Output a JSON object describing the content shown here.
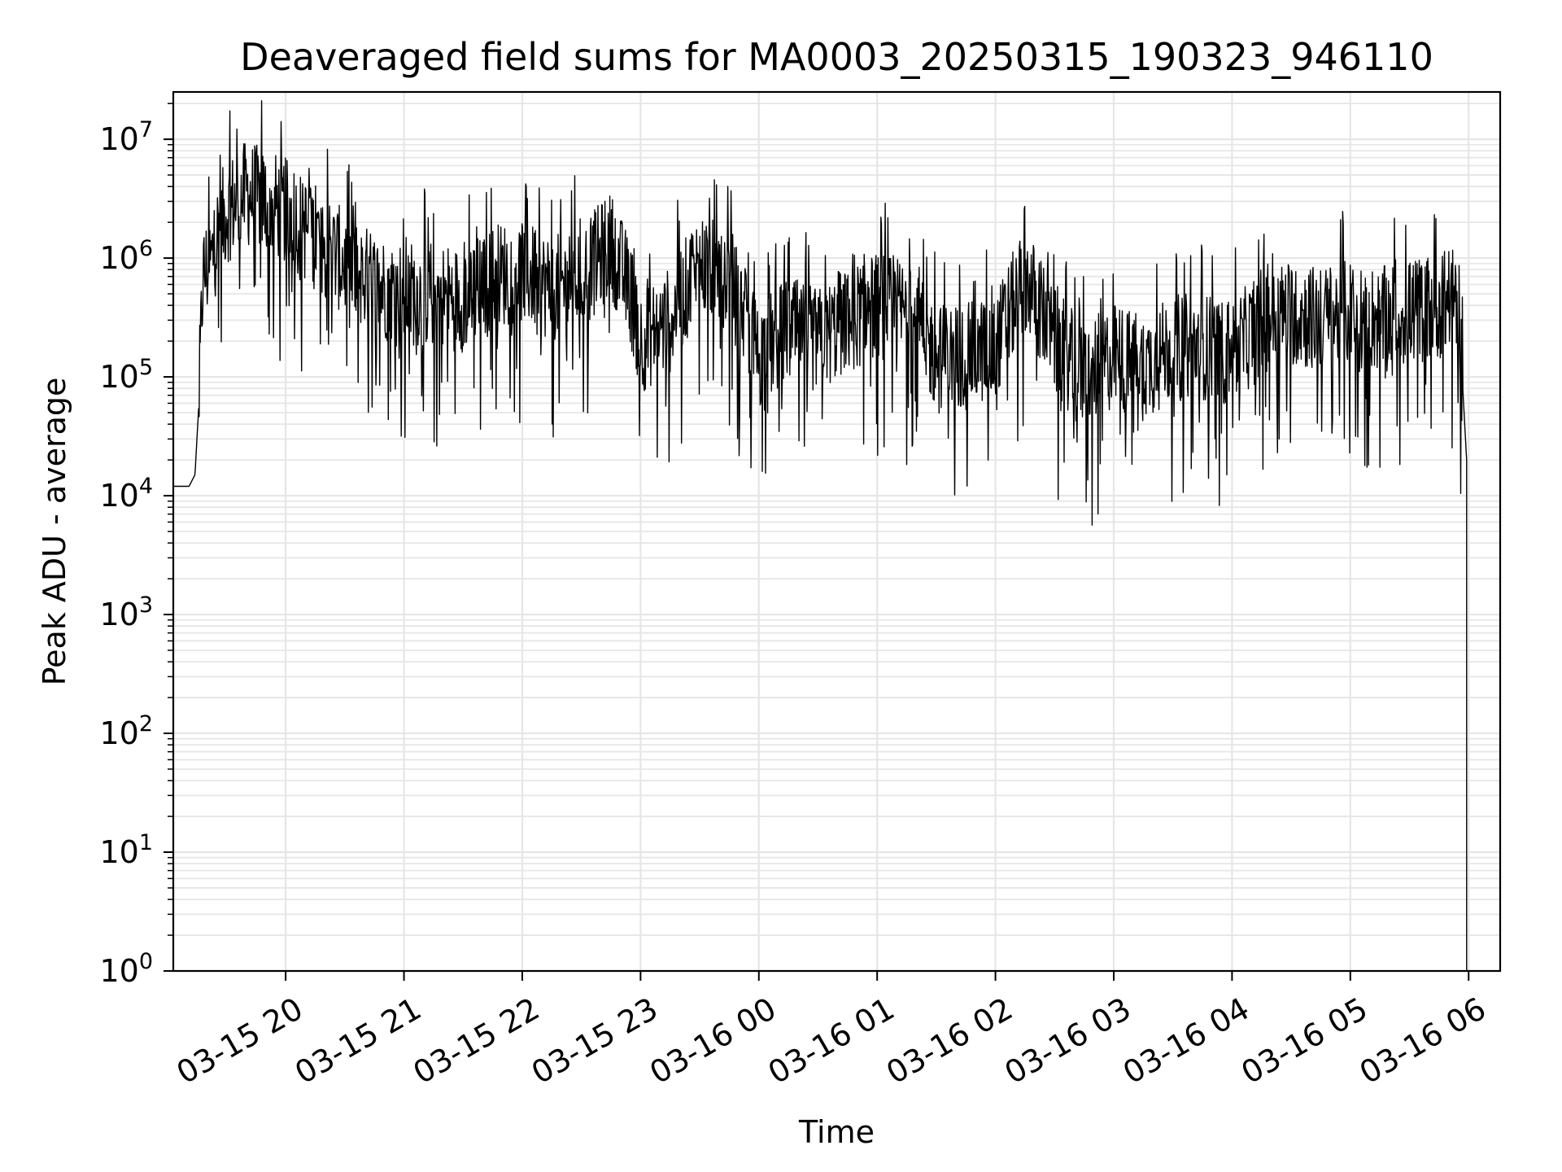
{
  "chart_data": {
    "type": "line",
    "title": "Deaveraged field sums for MA0003_20250315_190323_946110",
    "xlabel": "Time",
    "ylabel": "Peak ADU - average",
    "yscale": "log",
    "ylim": [
      1,
      25000000
    ],
    "xlim": [
      "2025-03-15 19:03",
      "2025-03-16 06:16"
    ],
    "grid": true,
    "line_color": "#000000",
    "grid_color": "#e6e6e6",
    "x_ticks": [
      "03-15 20",
      "03-15 21",
      "03-15 22",
      "03-15 23",
      "03-16 00",
      "03-16 01",
      "03-16 02",
      "03-16 03",
      "03-16 04",
      "03-16 05",
      "03-16 06"
    ],
    "y_ticks": [
      {
        "base": "10",
        "exp": "0"
      },
      {
        "base": "10",
        "exp": "1"
      },
      {
        "base": "10",
        "exp": "2"
      },
      {
        "base": "10",
        "exp": "3"
      },
      {
        "base": "10",
        "exp": "4"
      },
      {
        "base": "10",
        "exp": "5"
      },
      {
        "base": "10",
        "exp": "6"
      },
      {
        "base": "10",
        "exp": "7"
      }
    ],
    "series": [
      {
        "x": [
          "2025-03-15 19:03",
          "2025-03-15 19:11",
          "2025-03-15 19:14",
          "2025-03-15 19:16",
          "2025-03-15 19:18",
          "2025-03-15 19:20",
          "2025-03-15 19:22",
          "2025-03-15 19:25",
          "2025-03-15 19:30",
          "2025-03-15 19:40",
          "2025-03-15 19:50",
          "2025-03-15 20:00",
          "2025-03-15 20:15",
          "2025-03-15 20:30",
          "2025-03-15 20:45",
          "2025-03-15 21:00",
          "2025-03-15 21:15",
          "2025-03-15 21:30",
          "2025-03-15 21:45",
          "2025-03-15 22:00",
          "2025-03-15 22:15",
          "2025-03-15 22:30",
          "2025-03-15 22:45",
          "2025-03-15 22:55",
          "2025-03-15 23:00",
          "2025-03-15 23:15",
          "2025-03-15 23:30",
          "2025-03-15 23:45",
          "2025-03-16 00:00",
          "2025-03-16 00:15",
          "2025-03-16 00:30",
          "2025-03-16 00:45",
          "2025-03-16 01:00",
          "2025-03-16 01:15",
          "2025-03-16 01:30",
          "2025-03-16 01:45",
          "2025-03-16 02:00",
          "2025-03-16 02:15",
          "2025-03-16 02:30",
          "2025-03-16 02:45",
          "2025-03-16 03:00",
          "2025-03-16 03:15",
          "2025-03-16 03:30",
          "2025-03-16 03:45",
          "2025-03-16 04:00",
          "2025-03-16 04:15",
          "2025-03-16 04:30",
          "2025-03-16 04:45",
          "2025-03-16 05:00",
          "2025-03-16 05:15",
          "2025-03-16 05:30",
          "2025-03-16 05:45",
          "2025-03-16 05:52",
          "2025-03-16 05:55",
          "2025-03-16 05:58",
          "2025-03-16 05:59",
          "2025-03-16 05:59"
        ],
        "y": [
          12000,
          12000,
          15000,
          60000,
          700000,
          800000,
          900000,
          1500000,
          2500000,
          3500000,
          3000000,
          2500000,
          1500000,
          900000,
          600000,
          500000,
          500000,
          450000,
          700000,
          800000,
          550000,
          700000,
          1300000,
          500000,
          200000,
          300000,
          900000,
          700000,
          150000,
          250000,
          200000,
          300000,
          400000,
          350000,
          150000,
          150000,
          180000,
          700000,
          200000,
          100000,
          150000,
          120000,
          180000,
          180000,
          150000,
          300000,
          350000,
          300000,
          350000,
          300000,
          350000,
          400000,
          450000,
          350000,
          40000,
          20000,
          1
        ]
      }
    ]
  }
}
